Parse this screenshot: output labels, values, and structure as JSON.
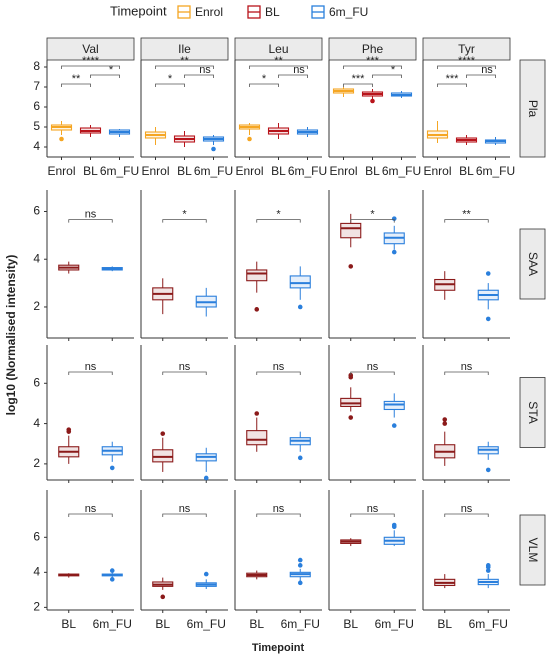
{
  "chart_data": {
    "type": "box",
    "legend_title": "Timepoint",
    "legend": [
      {
        "name": "Enrol",
        "color": "#f5a623"
      },
      {
        "name": "BL",
        "color": "#b8141b"
      },
      {
        "name": "6m_FU",
        "color": "#2a7fdc"
      }
    ],
    "y_label": "log10 (Normalised intensity)",
    "x_label": "Timepoint",
    "columns": [
      "Val",
      "Ile",
      "Leu",
      "Phe",
      "Tyr"
    ],
    "rows": [
      {
        "name": "Pla",
        "ylim": [
          3.5,
          8.35
        ],
        "yticks": [
          4,
          5,
          6,
          7,
          8
        ],
        "categories": [
          "Enrol",
          "BL",
          "6m_FU"
        ],
        "colors": [
          "#f5a623",
          "#b8141b",
          "#2a7fdc"
        ],
        "panels": [
          {
            "signif": [
              "**",
              "*",
              "****"
            ],
            "boxes": [
              {
                "min": 4.6,
                "q1": 4.85,
                "median": 5.0,
                "q3": 5.1,
                "max": 5.3,
                "outliers": [
                  4.4
                ]
              },
              {
                "min": 4.5,
                "q1": 4.7,
                "median": 4.8,
                "q3": 4.95,
                "max": 5.1
              },
              {
                "min": 4.5,
                "q1": 4.65,
                "median": 4.75,
                "q3": 4.85,
                "max": 4.9
              }
            ]
          },
          {
            "signif": [
              "*",
              "ns",
              "**"
            ],
            "boxes": [
              {
                "min": 4.1,
                "q1": 4.45,
                "median": 4.6,
                "q3": 4.75,
                "max": 5.0
              },
              {
                "min": 4.0,
                "q1": 4.25,
                "median": 4.4,
                "q3": 4.55,
                "max": 4.8
              },
              {
                "min": 4.1,
                "q1": 4.3,
                "median": 4.4,
                "q3": 4.5,
                "max": 4.6,
                "outliers": [
                  3.9
                ]
              }
            ]
          },
          {
            "signif": [
              "*",
              "ns",
              "**"
            ],
            "boxes": [
              {
                "min": 4.6,
                "q1": 4.9,
                "median": 5.0,
                "q3": 5.1,
                "max": 5.2,
                "outliers": [
                  4.4
                ]
              },
              {
                "min": 4.4,
                "q1": 4.65,
                "median": 4.8,
                "q3": 4.95,
                "max": 5.2
              },
              {
                "min": 4.5,
                "q1": 4.65,
                "median": 4.75,
                "q3": 4.85,
                "max": 5.0
              }
            ]
          },
          {
            "signif": [
              "***",
              "*",
              "***"
            ],
            "boxes": [
              {
                "min": 6.5,
                "q1": 6.7,
                "median": 6.8,
                "q3": 6.9,
                "max": 7.0
              },
              {
                "min": 6.4,
                "q1": 6.55,
                "median": 6.65,
                "q3": 6.75,
                "max": 6.9,
                "outliers": [
                  6.3
                ]
              },
              {
                "min": 6.45,
                "q1": 6.55,
                "median": 6.6,
                "q3": 6.7,
                "max": 6.8
              }
            ]
          },
          {
            "signif": [
              "***",
              "ns",
              "****"
            ],
            "boxes": [
              {
                "min": 4.2,
                "q1": 4.45,
                "median": 4.6,
                "q3": 4.8,
                "max": 5.3
              },
              {
                "min": 4.1,
                "q1": 4.25,
                "median": 4.35,
                "q3": 4.45,
                "max": 4.6
              },
              {
                "min": 4.1,
                "q1": 4.2,
                "median": 4.3,
                "q3": 4.35,
                "max": 4.5
              }
            ]
          }
        ]
      },
      {
        "name": "SAA",
        "ylim": [
          0.7,
          6.9
        ],
        "yticks": [
          2,
          4,
          6
        ],
        "colors": [
          "#8b1a1a",
          "#2a7fdc"
        ],
        "panels": [
          {
            "signif": [
              "ns"
            ],
            "boxes": [
              {
                "min": 3.4,
                "q1": 3.55,
                "median": 3.65,
                "q3": 3.75,
                "max": 3.9
              },
              {
                "min": 3.5,
                "q1": 3.55,
                "median": 3.6,
                "q3": 3.65,
                "max": 3.7
              }
            ]
          },
          {
            "signif": [
              "*"
            ],
            "boxes": [
              {
                "min": 1.7,
                "q1": 2.3,
                "median": 2.55,
                "q3": 2.8,
                "max": 3.2
              },
              {
                "min": 1.6,
                "q1": 2.0,
                "median": 2.2,
                "q3": 2.45,
                "max": 2.8
              }
            ]
          },
          {
            "signif": [
              "*"
            ],
            "boxes": [
              {
                "min": 2.6,
                "q1": 3.1,
                "median": 3.4,
                "q3": 3.55,
                "max": 3.9,
                "outliers": [
                  1.9
                ]
              },
              {
                "min": 2.3,
                "q1": 2.8,
                "median": 3.0,
                "q3": 3.3,
                "max": 3.7,
                "outliers": [
                  2.0
                ]
              }
            ]
          },
          {
            "signif": [
              "*"
            ],
            "boxes": [
              {
                "min": 4.5,
                "q1": 4.9,
                "median": 5.3,
                "q3": 5.5,
                "max": 5.9,
                "outliers": [
                  3.7
                ]
              },
              {
                "min": 4.4,
                "q1": 4.65,
                "median": 4.9,
                "q3": 5.1,
                "max": 5.4,
                "outliers": [
                  5.7,
                  4.3
                ]
              }
            ]
          },
          {
            "signif": [
              "**"
            ],
            "boxes": [
              {
                "min": 2.3,
                "q1": 2.7,
                "median": 2.95,
                "q3": 3.15,
                "max": 3.5
              },
              {
                "min": 1.9,
                "q1": 2.3,
                "median": 2.5,
                "q3": 2.7,
                "max": 3.0,
                "outliers": [
                  3.4,
                  1.5
                ]
              }
            ]
          }
        ]
      },
      {
        "name": "STA",
        "ylim": [
          1.2,
          7.9
        ],
        "yticks": [
          2,
          4,
          6
        ],
        "colors": [
          "#8b1a1a",
          "#2a7fdc"
        ],
        "panels": [
          {
            "signif": [
              "ns"
            ],
            "boxes": [
              {
                "min": 2.0,
                "q1": 2.35,
                "median": 2.6,
                "q3": 2.85,
                "max": 3.4,
                "outliers": [
                  3.6,
                  3.7
                ]
              },
              {
                "min": 2.1,
                "q1": 2.45,
                "median": 2.65,
                "q3": 2.85,
                "max": 3.1,
                "outliers": [
                  1.8
                ]
              }
            ]
          },
          {
            "signif": [
              "ns"
            ],
            "boxes": [
              {
                "min": 1.6,
                "q1": 2.1,
                "median": 2.35,
                "q3": 2.7,
                "max": 3.3,
                "outliers": [
                  3.5
                ]
              },
              {
                "min": 1.6,
                "q1": 2.15,
                "median": 2.35,
                "q3": 2.5,
                "max": 2.8,
                "outliers": [
                  1.3
                ]
              }
            ]
          },
          {
            "signif": [
              "ns"
            ],
            "boxes": [
              {
                "min": 2.6,
                "q1": 2.95,
                "median": 3.2,
                "q3": 3.65,
                "max": 4.3,
                "outliers": [
                  4.5
                ]
              },
              {
                "min": 2.6,
                "q1": 2.95,
                "median": 3.15,
                "q3": 3.3,
                "max": 3.6,
                "outliers": [
                  2.3
                ]
              }
            ]
          },
          {
            "signif": [
              "ns"
            ],
            "boxes": [
              {
                "min": 4.6,
                "q1": 4.85,
                "median": 5.0,
                "q3": 5.25,
                "max": 5.8,
                "outliers": [
                  6.3,
                  6.4,
                  4.3
                ]
              },
              {
                "min": 4.3,
                "q1": 4.7,
                "median": 4.95,
                "q3": 5.1,
                "max": 5.5,
                "outliers": [
                  3.9
                ]
              }
            ]
          },
          {
            "signif": [
              "ns"
            ],
            "boxes": [
              {
                "min": 1.9,
                "q1": 2.3,
                "median": 2.6,
                "q3": 2.95,
                "max": 3.6,
                "outliers": [
                  4.0,
                  4.2
                ]
              },
              {
                "min": 2.2,
                "q1": 2.5,
                "median": 2.7,
                "q3": 2.85,
                "max": 3.1,
                "outliers": [
                  1.7
                ]
              }
            ]
          }
        ]
      },
      {
        "name": "VLM",
        "ylim": [
          1.85,
          8.7
        ],
        "yticks": [
          2,
          4,
          6
        ],
        "categories": [
          "BL",
          "6m_FU"
        ],
        "colors": [
          "#8b1a1a",
          "#2a7fdc"
        ],
        "panels": [
          {
            "signif": [
              "ns"
            ],
            "boxes": [
              {
                "min": 3.7,
                "q1": 3.8,
                "median": 3.85,
                "q3": 3.9,
                "max": 3.95
              },
              {
                "min": 3.65,
                "q1": 3.8,
                "median": 3.85,
                "q3": 3.9,
                "max": 4.0,
                "outliers": [
                  4.1,
                  3.6
                ]
              }
            ]
          },
          {
            "signif": [
              "ns"
            ],
            "boxes": [
              {
                "min": 3.0,
                "q1": 3.2,
                "median": 3.3,
                "q3": 3.45,
                "max": 3.7,
                "outliers": [
                  2.6
                ]
              },
              {
                "min": 3.05,
                "q1": 3.2,
                "median": 3.3,
                "q3": 3.4,
                "max": 3.6,
                "outliers": [
                  3.9
                ]
              }
            ]
          },
          {
            "signif": [
              "ns"
            ],
            "boxes": [
              {
                "min": 3.6,
                "q1": 3.75,
                "median": 3.85,
                "q3": 3.95,
                "max": 4.1
              },
              {
                "min": 3.5,
                "q1": 3.75,
                "median": 3.9,
                "q3": 4.0,
                "max": 4.2,
                "outliers": [
                  4.7,
                  4.4,
                  3.4
                ]
              }
            ]
          },
          {
            "signif": [
              "ns"
            ],
            "boxes": [
              {
                "min": 5.5,
                "q1": 5.65,
                "median": 5.75,
                "q3": 5.85,
                "max": 5.95
              },
              {
                "min": 5.5,
                "q1": 5.6,
                "median": 5.8,
                "q3": 6.0,
                "max": 6.4,
                "outliers": [
                  6.6,
                  6.7
                ]
              }
            ]
          },
          {
            "signif": [
              "ns"
            ],
            "boxes": [
              {
                "min": 3.1,
                "q1": 3.25,
                "median": 3.4,
                "q3": 3.6,
                "max": 3.9
              },
              {
                "min": 3.1,
                "q1": 3.3,
                "median": 3.45,
                "q3": 3.6,
                "max": 3.9,
                "outliers": [
                  4.1,
                  4.3,
                  4.4
                ]
              }
            ]
          }
        ]
      }
    ]
  }
}
